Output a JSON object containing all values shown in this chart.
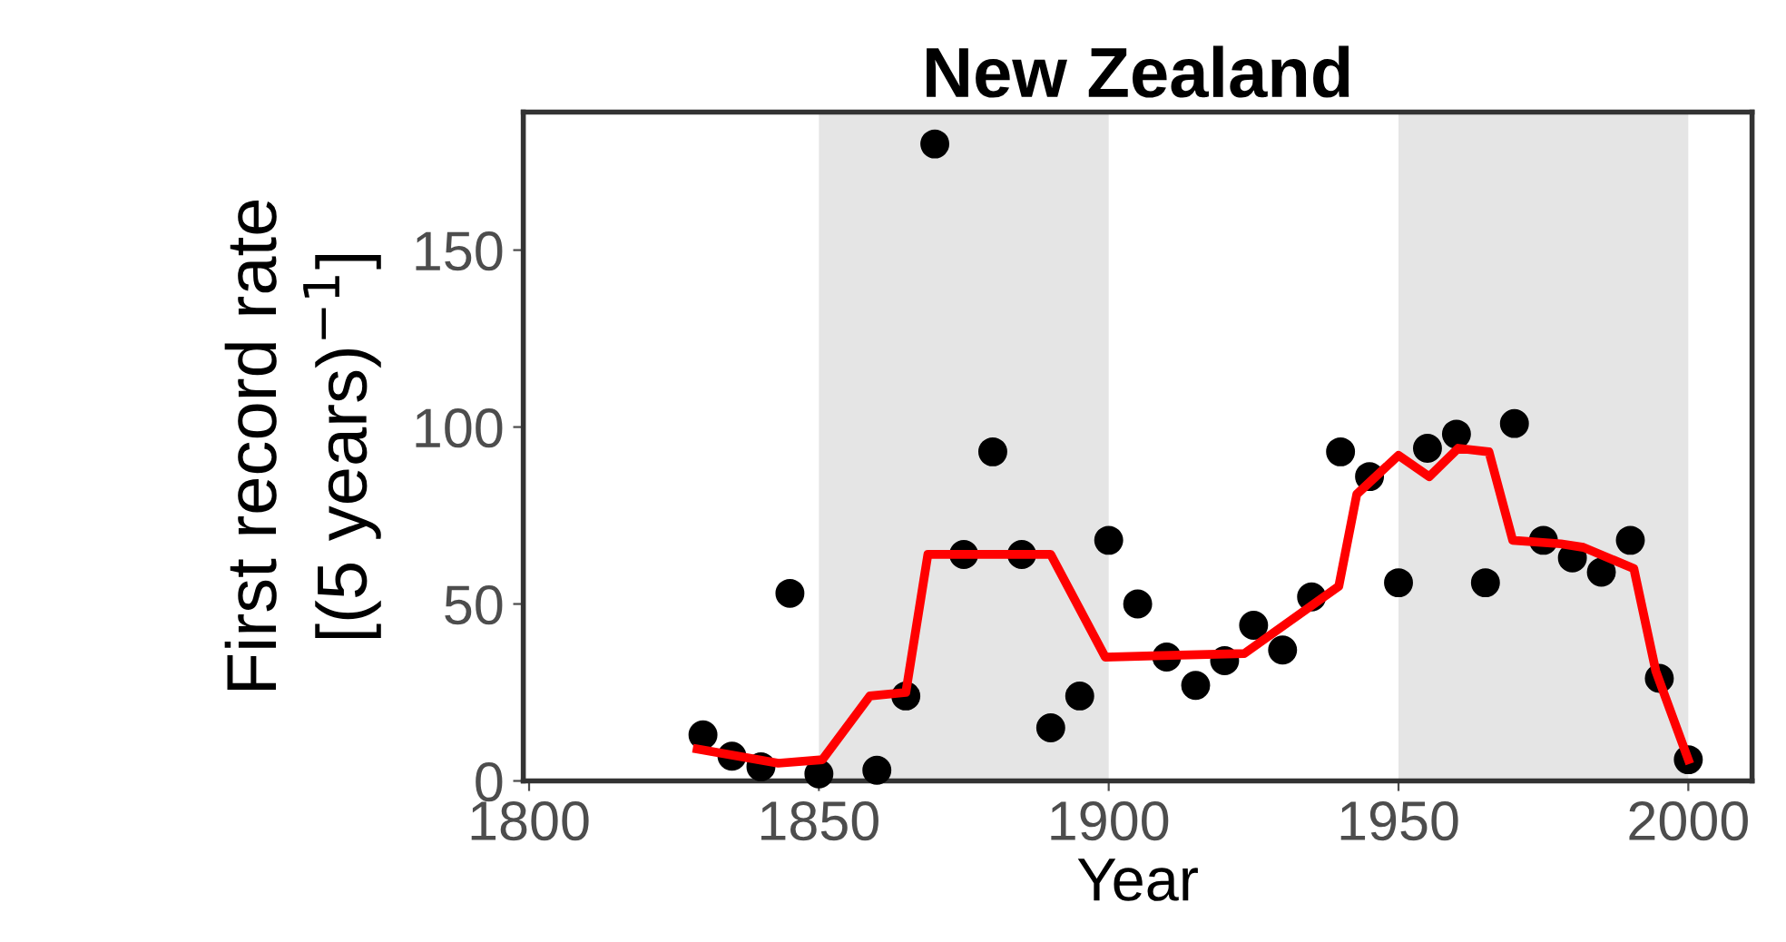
{
  "chart_data": {
    "type": "scatter",
    "title": "New Zealand",
    "xlabel": "Year",
    "ylabel": "First record rate\n[(5 years)$^{−1}$]",
    "xlim": [
      1799,
      2011
    ],
    "xticks": [
      1800,
      1850,
      1900,
      1950,
      2000
    ],
    "ylim": [
      0,
      189
    ],
    "yticks": [
      0,
      50,
      100,
      150
    ],
    "grid": false,
    "bands": [
      {
        "axis": "x",
        "from": 1850,
        "to": 1900,
        "color": "#e5e5e5"
      },
      {
        "axis": "x",
        "from": 1950,
        "to": 2000,
        "color": "#e5e5e5"
      }
    ],
    "series": [
      {
        "marker": "circle",
        "color": "#000000",
        "x": [
          1830,
          1835,
          1840,
          1845,
          1850,
          1860,
          1865,
          1870,
          1875,
          1880,
          1885,
          1890,
          1895,
          1900,
          1905,
          1910,
          1915,
          1920,
          1925,
          1930,
          1935,
          1940,
          1945,
          1950,
          1955,
          1960,
          1965,
          1970,
          1975,
          1980,
          1985,
          1990,
          1995,
          2000
        ],
        "values": [
          13,
          7,
          4,
          53,
          2,
          3,
          24,
          180,
          64,
          93,
          64,
          15,
          24,
          68,
          50,
          35,
          27,
          34,
          44,
          37,
          52,
          93,
          86,
          56,
          94,
          98,
          56,
          101,
          68,
          63,
          59,
          68,
          29,
          6
        ]
      },
      {
        "type": "line",
        "color": "#ff0000",
        "x": [
          1829,
          1843,
          1850.6,
          1858.8,
          1865,
          1868.8,
          1890,
          1899.4,
          1923.4,
          1939.7,
          1942.8,
          1950,
          1955.3,
          1960.3,
          1965.6,
          1969.7,
          1978,
          1981.9,
          1990.6,
          1994.4,
          2000
        ],
        "values": [
          9,
          5,
          6,
          24,
          25,
          64,
          64,
          35,
          36,
          55,
          81,
          92,
          86,
          94,
          93,
          68,
          67,
          66,
          60,
          31,
          6
        ]
      }
    ]
  }
}
